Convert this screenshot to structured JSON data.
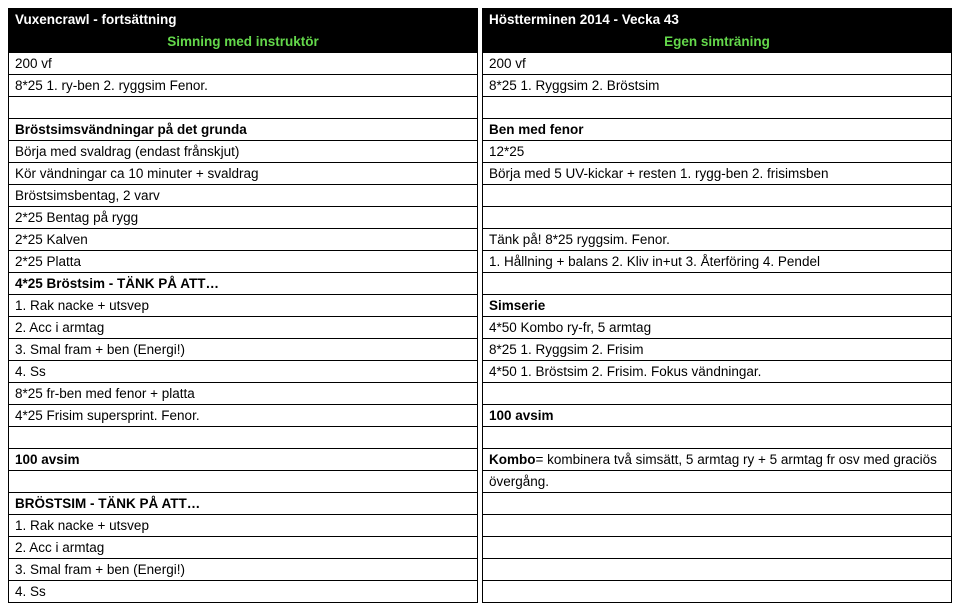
{
  "colors": {
    "bg": "#ffffff",
    "fg": "#000000",
    "banner_bg": "#000000",
    "banner_fg": "#ffffff",
    "banner_green": "#64d84b"
  },
  "left": {
    "title": "Vuxencrawl - fortsättning",
    "subtitle": "Simning med instruktör",
    "rows": [
      "200 vf",
      "8*25 1. ry-ben 2. ryggsim Fenor.",
      "",
      "Bröstsimsvändningar på det grunda",
      "Börja med svaldrag (endast frånskjut)",
      "Kör vändningar ca 10 minuter + svaldrag",
      "Bröstsimsbentag, 2 varv",
      "2*25 Bentag på rygg",
      "2*25 Kalven",
      "2*25 Platta",
      "4*25 Bröstsim - TÄNK PÅ ATT…",
      "1. Rak nacke + utsvep",
      "2. Acc i armtag",
      "3. Smal fram + ben (Energi!)",
      "4. Ss",
      "8*25 fr-ben med fenor + platta",
      "4*25 Frisim supersprint. Fenor.",
      "",
      "100 avsim",
      "",
      "BRÖSTSIM - TÄNK PÅ ATT…",
      "1. Rak nacke + utsvep",
      "2. Acc i armtag",
      "3. Smal fram + ben (Energi!)",
      "4. Ss"
    ],
    "bold_rows": [
      3,
      10,
      18,
      20
    ]
  },
  "right": {
    "title": "Höstterminen 2014 - Vecka 43",
    "subtitle": "Egen simträning",
    "rows": [
      "200 vf",
      "8*25 1. Ryggsim 2. Bröstsim",
      "",
      "Ben med fenor",
      "12*25",
      "Börja med 5 UV-kickar + resten 1. rygg-ben 2. frisimsben",
      "",
      "",
      "Tänk på! 8*25 ryggsim. Fenor.",
      "1. Hållning + balans 2. Kliv in+ut 3. Återföring 4. Pendel",
      "",
      "Simserie",
      "4*50 Kombo ry-fr, 5 armtag",
      "8*25 1. Ryggsim 2. Frisim",
      "4*50 1. Bröstsim 2. Frisim. Fokus vändningar.",
      "",
      "100 avsim",
      "",
      "Kombo = kombinera två simsätt, 5 armtag ry + 5 armtag fr osv med graciös",
      "övergång.",
      "",
      "",
      "",
      "",
      ""
    ],
    "bold_rows": [
      3,
      11,
      16
    ],
    "kombo_row": 18,
    "kombo_prefix": "Kombo",
    "kombo_rest": " = kombinera två simsätt, 5 armtag ry + 5 armtag fr osv med graciös"
  }
}
